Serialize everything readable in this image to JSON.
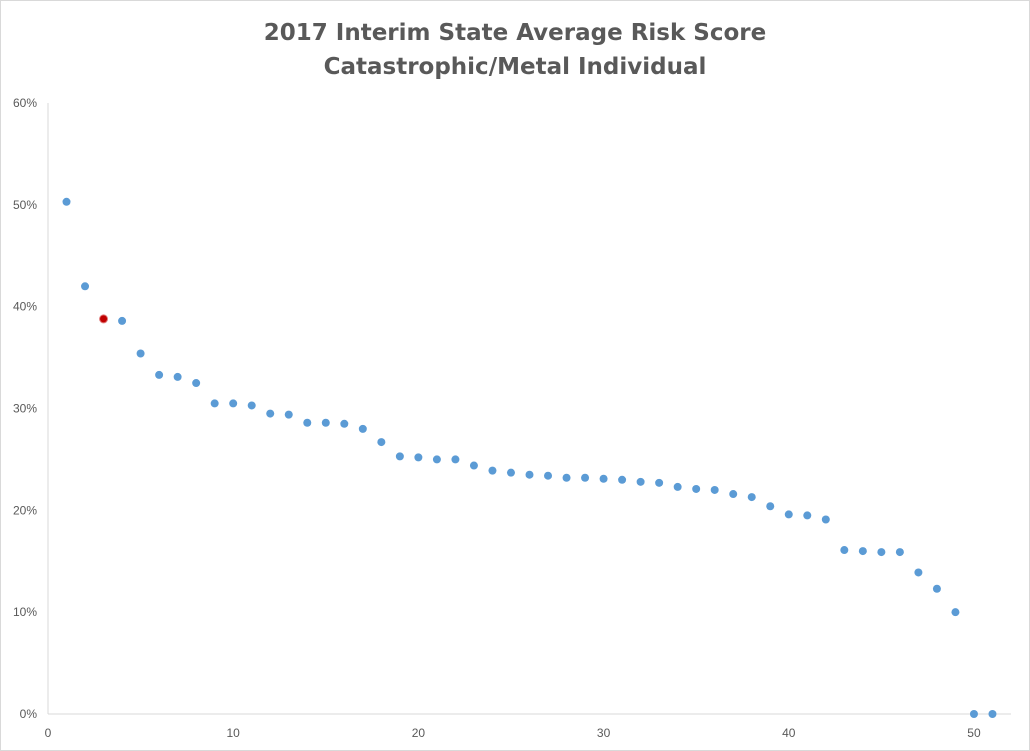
{
  "chart_data": {
    "type": "scatter",
    "title": "2017 Interim State Average Risk Score",
    "subtitle": "Catastrophic/Metal Individual",
    "xlabel": "",
    "ylabel": "",
    "xlim": [
      0,
      52
    ],
    "ylim": [
      0,
      60
    ],
    "x_ticks": [
      0,
      10,
      20,
      30,
      40,
      50
    ],
    "x_tick_labels": [
      "0",
      "10",
      "20",
      "30",
      "40",
      "50"
    ],
    "y_ticks": [
      0,
      10,
      20,
      30,
      40,
      50,
      60
    ],
    "y_tick_labels": [
      "0%",
      "10%",
      "20%",
      "30%",
      "40%",
      "50%",
      "60%"
    ],
    "grid": false,
    "legend": "none",
    "series": [
      {
        "color": "#5b9bd5",
        "points": [
          [
            1,
            50.3
          ],
          [
            2,
            42.0
          ],
          [
            3,
            38.8
          ],
          [
            4,
            38.6
          ],
          [
            5,
            35.4
          ],
          [
            6,
            33.3
          ],
          [
            7,
            33.1
          ],
          [
            8,
            32.5
          ],
          [
            9,
            30.5
          ],
          [
            10,
            30.5
          ],
          [
            11,
            30.3
          ],
          [
            12,
            29.5
          ],
          [
            13,
            29.4
          ],
          [
            14,
            28.6
          ],
          [
            15,
            28.6
          ],
          [
            16,
            28.5
          ],
          [
            17,
            28.0
          ],
          [
            18,
            26.7
          ],
          [
            19,
            25.3
          ],
          [
            20,
            25.2
          ],
          [
            21,
            25.0
          ],
          [
            22,
            25.0
          ],
          [
            23,
            24.4
          ],
          [
            24,
            23.9
          ],
          [
            25,
            23.7
          ],
          [
            26,
            23.5
          ],
          [
            27,
            23.4
          ],
          [
            28,
            23.2
          ],
          [
            29,
            23.2
          ],
          [
            30,
            23.1
          ],
          [
            31,
            23.0
          ],
          [
            32,
            22.8
          ],
          [
            33,
            22.7
          ],
          [
            34,
            22.3
          ],
          [
            35,
            22.1
          ],
          [
            36,
            22.0
          ],
          [
            37,
            21.6
          ],
          [
            38,
            21.3
          ],
          [
            39,
            20.4
          ],
          [
            40,
            19.6
          ],
          [
            41,
            19.5
          ],
          [
            42,
            19.1
          ],
          [
            43,
            16.1
          ],
          [
            44,
            16.0
          ],
          [
            45,
            15.9
          ],
          [
            46,
            15.9
          ],
          [
            47,
            13.9
          ],
          [
            48,
            12.3
          ],
          [
            49,
            10.0
          ],
          [
            50,
            0.0
          ],
          [
            51,
            0.0
          ]
        ]
      }
    ],
    "highlighted_point": {
      "x": 3,
      "y": 38.8,
      "color": "#c00000"
    }
  }
}
